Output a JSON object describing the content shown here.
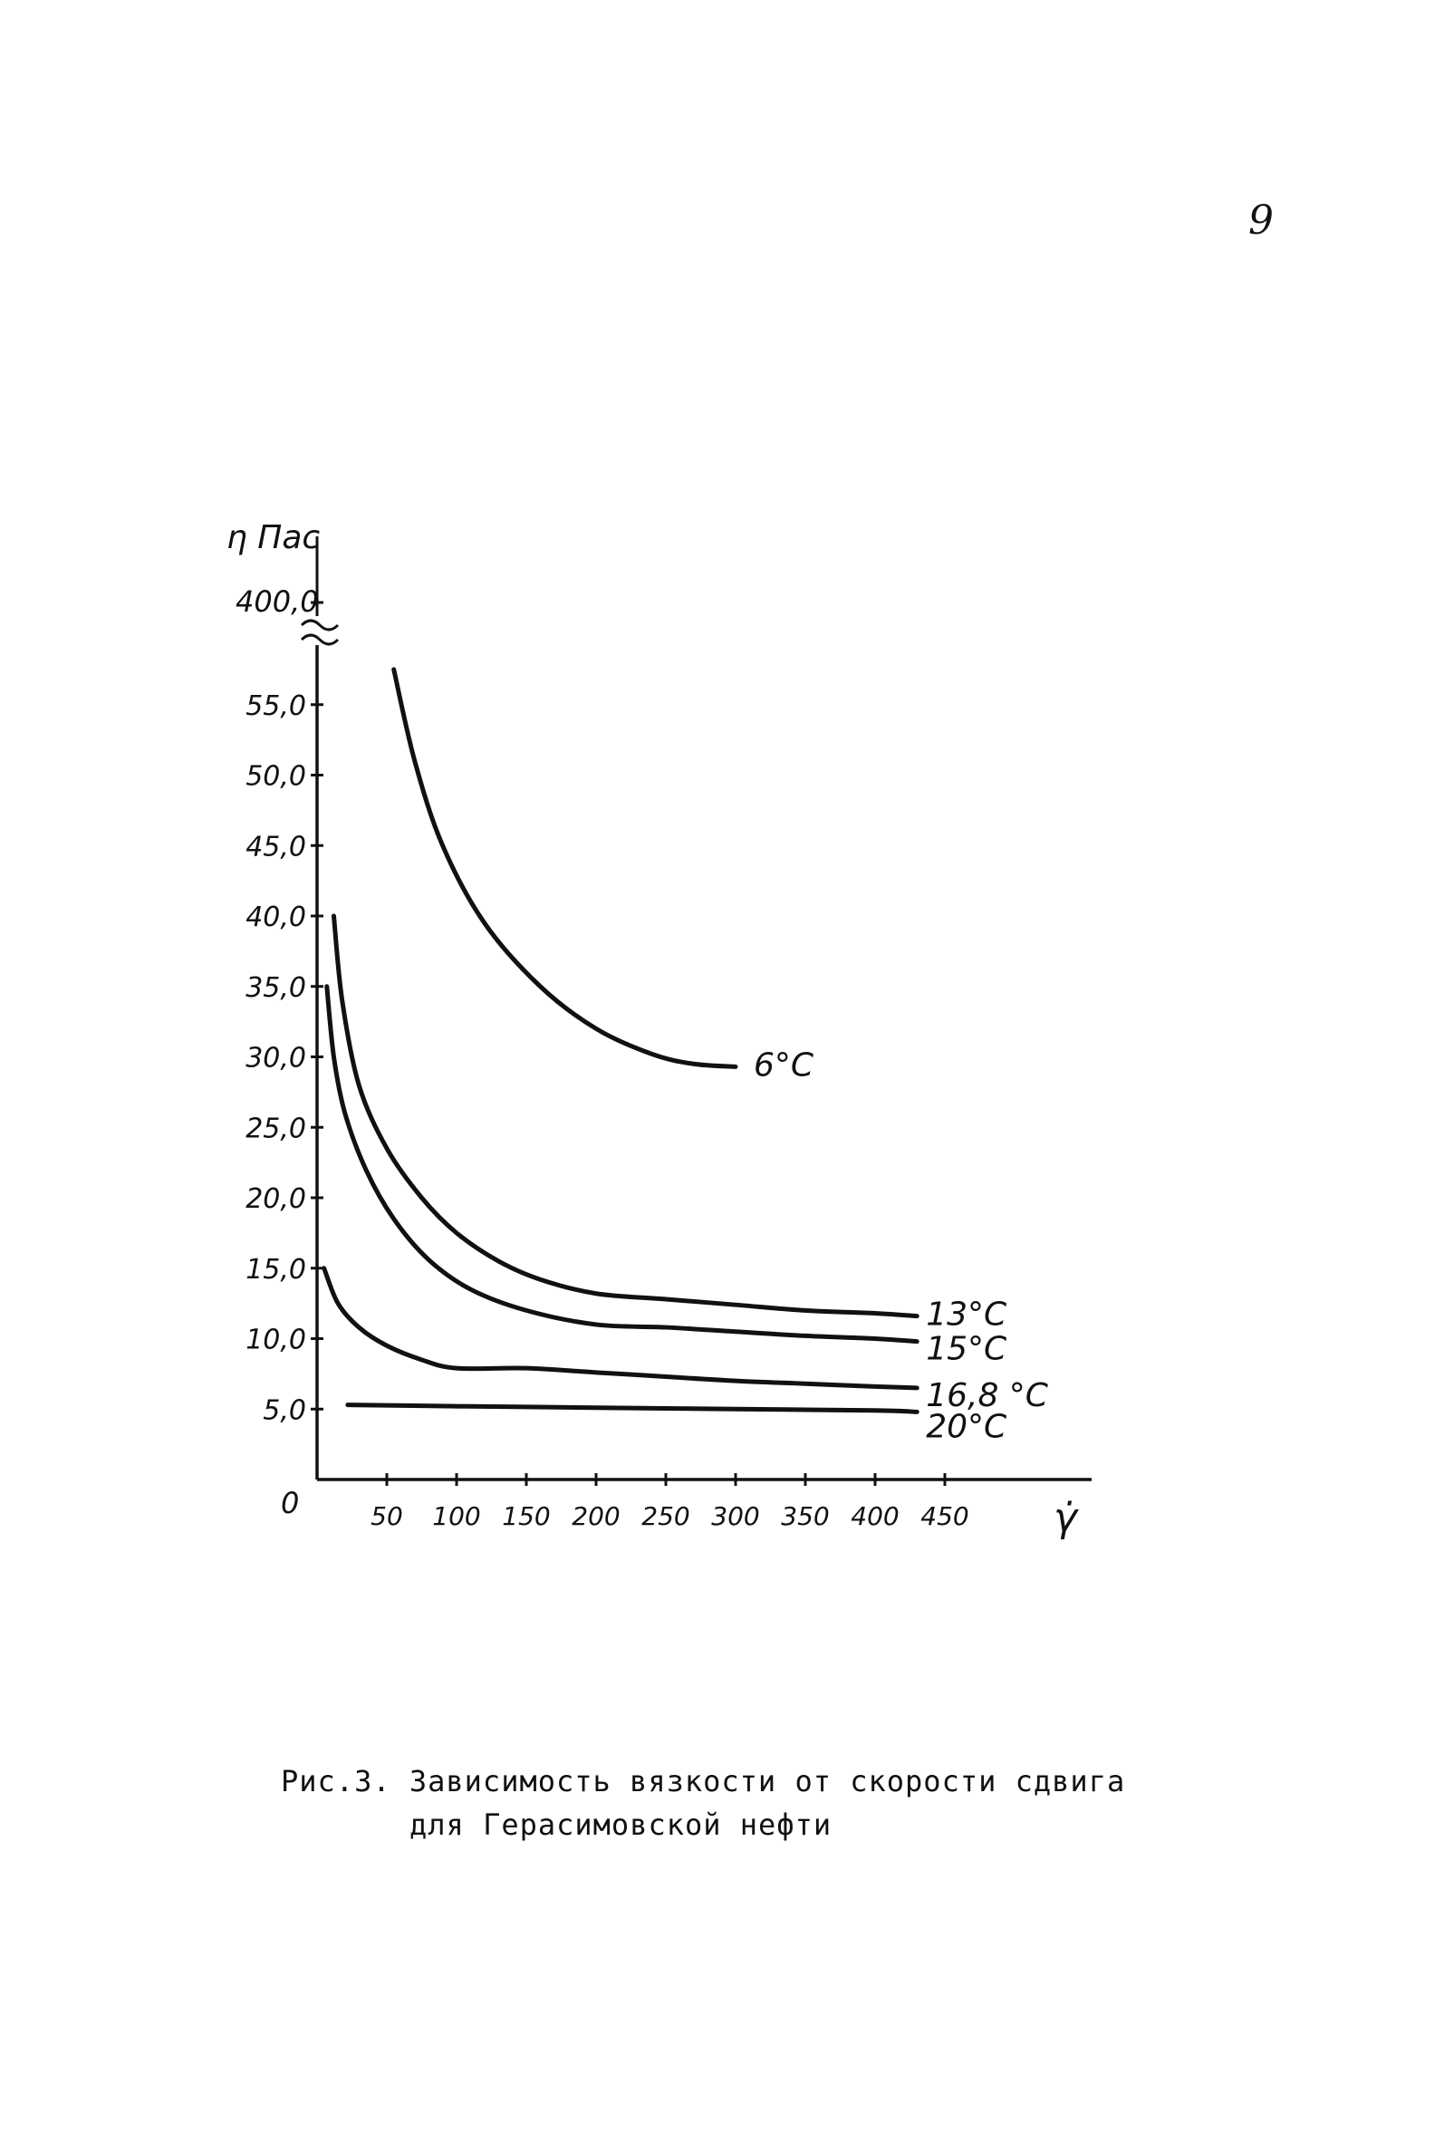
{
  "page_number": "9",
  "caption": {
    "line1": "Рис.3. Зависимость вязкости от скорости сдвига",
    "line2": "для Герасимовской нефти"
  },
  "chart_data": {
    "type": "line",
    "ylabel": "η Пас",
    "xlabel": "γ̇",
    "origin_label": "0",
    "y_break_tick": "400,0",
    "x_ticks": [
      {
        "v": 50,
        "label": "50"
      },
      {
        "v": 100,
        "label": "100"
      },
      {
        "v": 150,
        "label": "150"
      },
      {
        "v": 200,
        "label": "200"
      },
      {
        "v": 250,
        "label": "250"
      },
      {
        "v": 300,
        "label": "300"
      },
      {
        "v": 350,
        "label": "350"
      },
      {
        "v": 400,
        "label": "400"
      },
      {
        "v": 450,
        "label": "450"
      }
    ],
    "y_ticks": [
      {
        "v": 5,
        "label": "5,0"
      },
      {
        "v": 10,
        "label": "10,0"
      },
      {
        "v": 15,
        "label": "15,0"
      },
      {
        "v": 20,
        "label": "20,0"
      },
      {
        "v": 25,
        "label": "25,0"
      },
      {
        "v": 30,
        "label": "30,0"
      },
      {
        "v": 35,
        "label": "35,0"
      },
      {
        "v": 40,
        "label": "40,0"
      },
      {
        "v": 45,
        "label": "45,0"
      },
      {
        "v": 50,
        "label": "50,0"
      },
      {
        "v": 55,
        "label": "55,0"
      }
    ],
    "xlim": [
      0,
      560
    ],
    "ylim": [
      0,
      58
    ],
    "series": [
      {
        "name": "6°C",
        "x": [
          55,
          70,
          90,
          120,
          160,
          200,
          240,
          270,
          300
        ],
        "y": [
          57.5,
          51,
          45,
          39.5,
          35,
          32,
          30.2,
          29.5,
          29.3
        ]
      },
      {
        "name": "13°C",
        "x": [
          12,
          18,
          30,
          50,
          75,
          100,
          130,
          160,
          200,
          250,
          300,
          350,
          400,
          430
        ],
        "y": [
          40,
          34,
          28,
          23.5,
          20,
          17.5,
          15.5,
          14.2,
          13.2,
          12.8,
          12.4,
          12,
          11.8,
          11.6
        ]
      },
      {
        "name": "15°C",
        "x": [
          7,
          12,
          20,
          35,
          55,
          80,
          110,
          150,
          200,
          250,
          300,
          350,
          400,
          430
        ],
        "y": [
          35,
          30,
          26,
          22,
          18.5,
          15.6,
          13.5,
          12,
          11,
          10.8,
          10.5,
          10.2,
          10,
          9.8
        ]
      },
      {
        "name": "16,8 °C",
        "x": [
          5,
          15,
          30,
          50,
          75,
          100,
          150,
          200,
          250,
          300,
          350,
          400,
          430
        ],
        "y": [
          15,
          12.5,
          10.8,
          9.5,
          8.5,
          7.9,
          7.9,
          7.6,
          7.3,
          7,
          6.8,
          6.6,
          6.5
        ]
      },
      {
        "name": "20°C",
        "x": [
          22,
          100,
          200,
          300,
          400,
          430
        ],
        "y": [
          5.3,
          5.2,
          5.1,
          5.0,
          4.9,
          4.8
        ]
      }
    ]
  }
}
